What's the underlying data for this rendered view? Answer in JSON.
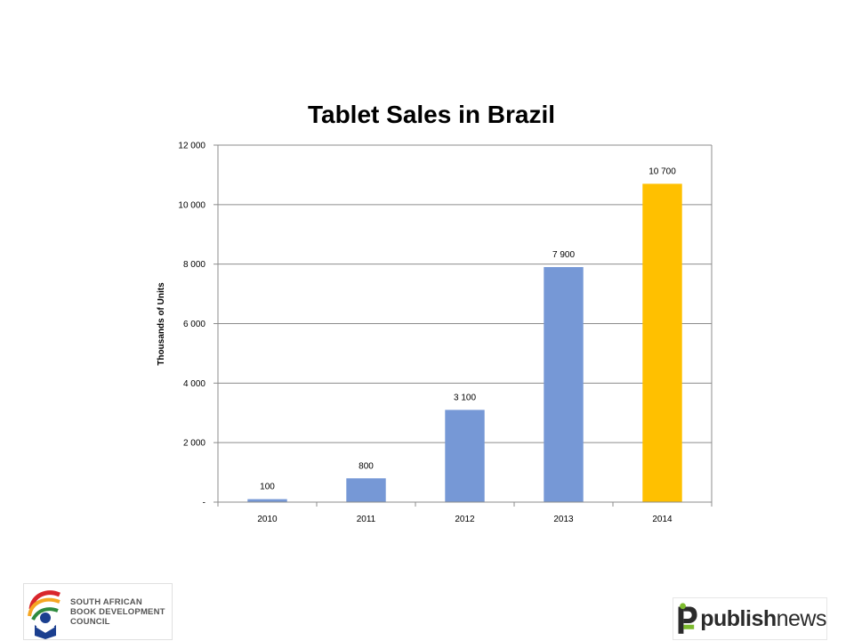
{
  "chart_data": {
    "type": "bar",
    "title": "Tablet Sales in Brazil",
    "xlabel": "",
    "ylabel": "Thousands  of Units",
    "categories": [
      "2010",
      "2011",
      "2012",
      "2013",
      "2014"
    ],
    "values": [
      100,
      800,
      3100,
      7900,
      10700
    ],
    "data_labels": [
      "100",
      "800",
      "3 100",
      "7 900",
      "10 700"
    ],
    "ylim": [
      0,
      12000
    ],
    "yticks": [
      0,
      2000,
      4000,
      6000,
      8000,
      10000,
      12000
    ],
    "ytick_labels": [
      "-",
      "2 000",
      "4 000",
      "6 000",
      "8 000",
      "10 000",
      "12 000"
    ],
    "grid": true,
    "legend": "none",
    "colors": {
      "default_bar": "#7698d6",
      "highlight_bar": "#ffc000",
      "grid": "#8c8c8c"
    },
    "highlight_index": 4
  },
  "logos": {
    "left": {
      "line1": "SOUTH AFRICAN",
      "line2": "BOOK DEVELOPMENT",
      "line3": "COUNCIL"
    },
    "right": {
      "bold": "publish",
      "light": "news"
    }
  }
}
